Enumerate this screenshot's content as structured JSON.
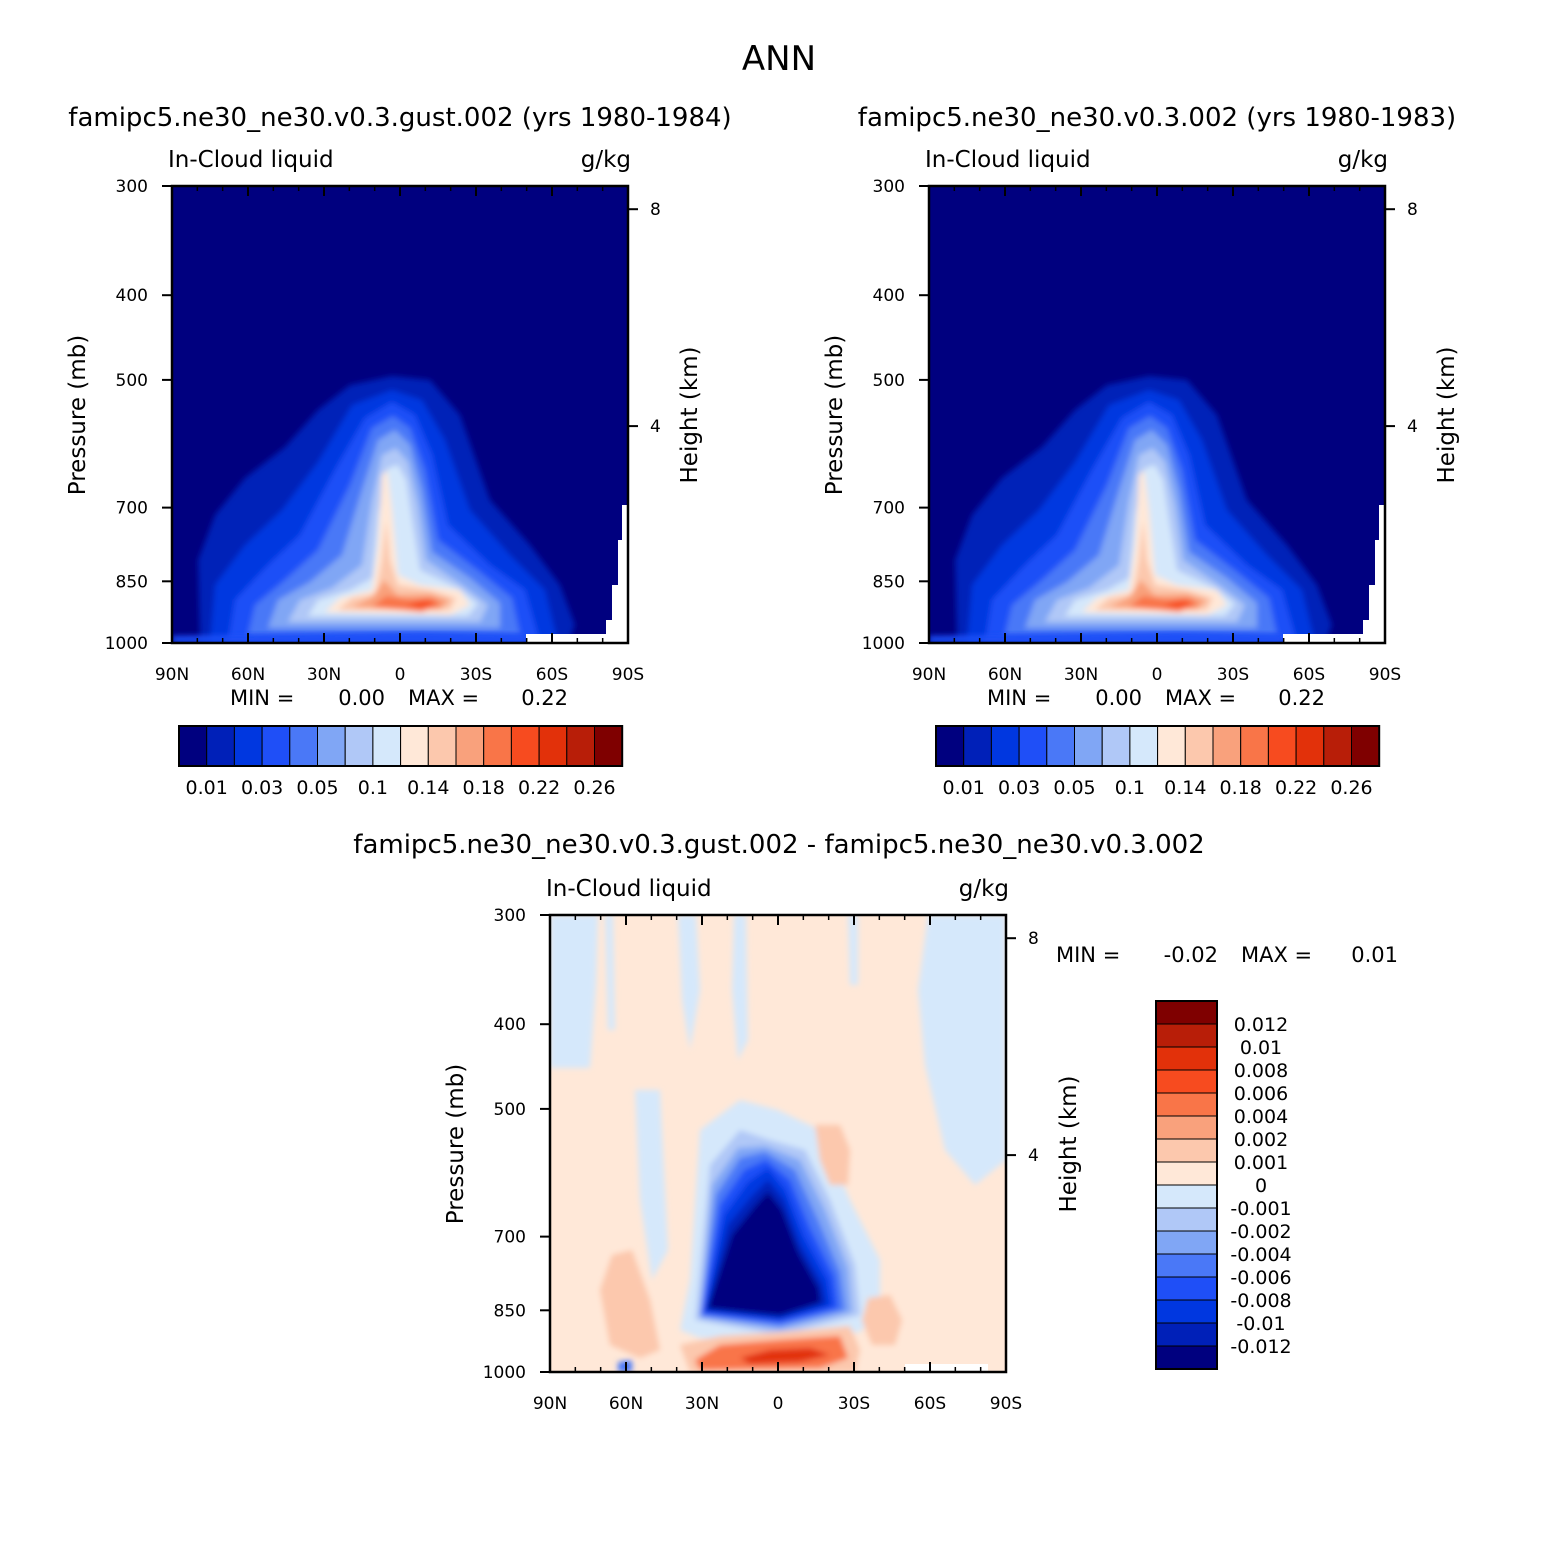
{
  "title": "ANN",
  "colors": {
    "seq_levels": [
      "#00007f",
      "#0020b8",
      "#0037e0",
      "#1f4ff7",
      "#4a78f7",
      "#80a6f5",
      "#b0c8f7",
      "#d5e8fb",
      "#ffe8d8",
      "#fcc8ad",
      "#f9a17c",
      "#f97548",
      "#f74b1f",
      "#e2310a",
      "#b81e08",
      "#7f0000"
    ],
    "diff_levels": [
      "#00007f",
      "#0020b8",
      "#0037e0",
      "#1f4ff7",
      "#4a78f7",
      "#80a6f5",
      "#b0c8f7",
      "#d5e8fb",
      "#ffe8d8",
      "#fcc8ad",
      "#f9a17c",
      "#f97548",
      "#f74b1f",
      "#e2310a",
      "#b81e08",
      "#7f0000"
    ]
  },
  "chart_data": [
    {
      "type": "heatmap",
      "title": "famipc5.ne30_ne30.v0.3.gust.002 (yrs 1980-1984)",
      "left_label": "In-Cloud liquid",
      "right_label": "g/kg",
      "xlabel": "",
      "ylabel": "Pressure (mb)",
      "y2label": "Height (km)",
      "x_ticks": [
        "90N",
        "60N",
        "30N",
        "0",
        "30S",
        "60S",
        "90S"
      ],
      "y_ticks": [
        "300",
        "400",
        "500",
        "700",
        "850",
        "1000"
      ],
      "y2_ticks": [
        "8",
        "4"
      ],
      "y_scale": "log",
      "ylim": [
        1000,
        300
      ],
      "xlim": [
        90,
        -90
      ],
      "min_label": "MIN =",
      "min_value": "0.00",
      "max_label": "MAX =",
      "max_value": "0.22",
      "min": 0.0,
      "max": 0.22,
      "colorbar": {
        "orientation": "horizontal",
        "labels": [
          "0.01",
          "0.03",
          "0.05",
          "0.1",
          "0.14",
          "0.18",
          "0.22",
          "0.26"
        ]
      }
    },
    {
      "type": "heatmap",
      "title": "famipc5.ne30_ne30.v0.3.002 (yrs 1980-1983)",
      "left_label": "In-Cloud liquid",
      "right_label": "g/kg",
      "xlabel": "",
      "ylabel": "Pressure (mb)",
      "y2label": "Height (km)",
      "x_ticks": [
        "90N",
        "60N",
        "30N",
        "0",
        "30S",
        "60S",
        "90S"
      ],
      "y_ticks": [
        "300",
        "400",
        "500",
        "700",
        "850",
        "1000"
      ],
      "y2_ticks": [
        "8",
        "4"
      ],
      "y_scale": "log",
      "ylim": [
        1000,
        300
      ],
      "xlim": [
        90,
        -90
      ],
      "min_label": "MIN =",
      "min_value": "0.00",
      "max_label": "MAX =",
      "max_value": "0.22",
      "min": 0.0,
      "max": 0.22,
      "colorbar": {
        "orientation": "horizontal",
        "labels": [
          "0.01",
          "0.03",
          "0.05",
          "0.1",
          "0.14",
          "0.18",
          "0.22",
          "0.26"
        ]
      }
    },
    {
      "type": "heatmap",
      "title": "famipc5.ne30_ne30.v0.3.gust.002 - famipc5.ne30_ne30.v0.3.002",
      "left_label": "In-Cloud liquid",
      "right_label": "g/kg",
      "xlabel": "",
      "ylabel": "Pressure (mb)",
      "y2label": "Height (km)",
      "x_ticks": [
        "90N",
        "60N",
        "30N",
        "0",
        "30S",
        "60S",
        "90S"
      ],
      "y_ticks": [
        "300",
        "400",
        "500",
        "700",
        "850",
        "1000"
      ],
      "y2_ticks": [
        "8",
        "4"
      ],
      "y_scale": "log",
      "ylim": [
        1000,
        300
      ],
      "xlim": [
        90,
        -90
      ],
      "min_label": "MIN =",
      "min_value": "-0.02",
      "max_label": "MAX =",
      "max_value": "0.01",
      "min": -0.02,
      "max": 0.01,
      "colorbar": {
        "orientation": "vertical",
        "labels": [
          "0.012",
          "0.01",
          "0.008",
          "0.006",
          "0.004",
          "0.002",
          "0.001",
          "0",
          "-0.001",
          "-0.002",
          "-0.004",
          "-0.006",
          "-0.008",
          "-0.01",
          "-0.012"
        ]
      }
    }
  ]
}
